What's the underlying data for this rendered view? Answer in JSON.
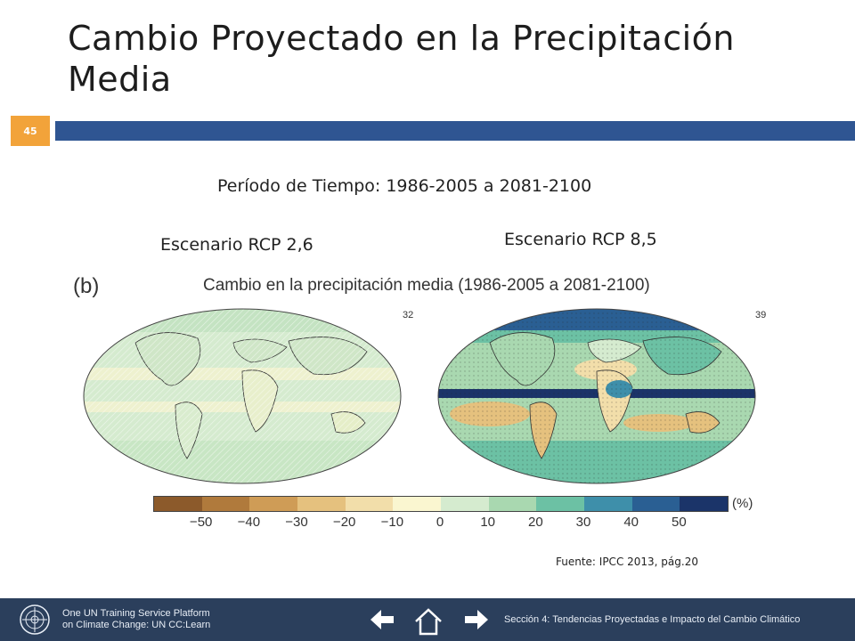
{
  "slide": {
    "title": "Cambio Proyectado en la Precipitación Media",
    "page_number": "45",
    "accent_color": "#2f5592",
    "page_badge_color": "#f2a33a"
  },
  "content": {
    "period": "Período de Tiempo: 1986-2005 a 2081-2100",
    "scenario_left": "Escenario RCP 2,6",
    "scenario_right": "Escenario RCP 8,5"
  },
  "figure": {
    "panel_label": "(b)",
    "title": "Cambio en la precipitación media (1986-2005 a 2081-2100)",
    "model_count_left": "32",
    "model_count_right": "39",
    "colorbar_unit": "(%)",
    "colorbar_ticks": [
      "−50",
      "−40",
      "−30",
      "−20",
      "−10",
      "0",
      "10",
      "20",
      "30",
      "40",
      "50"
    ],
    "colorbar_colors": [
      "#8c5a2b",
      "#b07a3c",
      "#cf9c56",
      "#e5c17e",
      "#f2deaa",
      "#faf6d0",
      "#d5ebcf",
      "#a9d8b0",
      "#6cc1a4",
      "#3e8faa",
      "#2a5f93",
      "#1b3469"
    ]
  },
  "source": "Fuente: IPCC 2013, pág.20",
  "footer": {
    "org_line1": "One UN Training Service Platform",
    "org_line2": "on Climate Change: UN CC:Learn",
    "section": "Sección 4: Tendencias Proyectadas e Impacto del Cambio Climático"
  }
}
